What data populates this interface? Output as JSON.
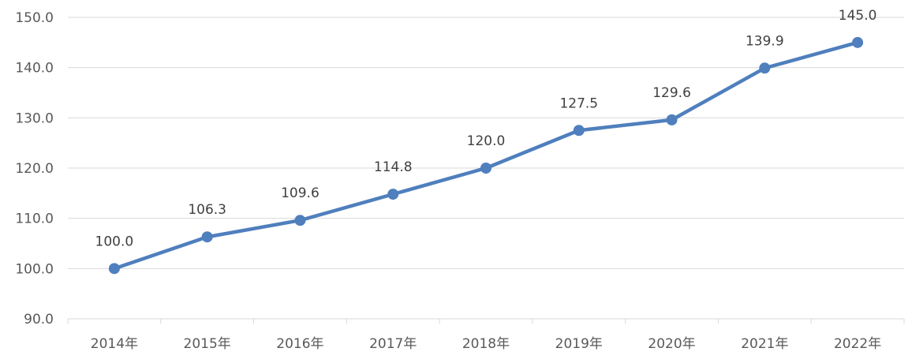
{
  "chart_data": {
    "type": "line",
    "title": "",
    "xlabel": "",
    "ylabel": "",
    "categories": [
      "2014年",
      "2015年",
      "2016年",
      "2017年",
      "2018年",
      "2019年",
      "2020年",
      "2021年",
      "2022年"
    ],
    "series": [
      {
        "values": [
          100.0,
          106.3,
          109.6,
          114.8,
          120.0,
          127.5,
          129.6,
          139.9,
          145.0
        ],
        "labels": [
          "100.0",
          "106.3",
          "109.6",
          "114.8",
          "120.0",
          "127.5",
          "129.6",
          "139.9",
          "145.0"
        ],
        "color": "#4f7fbd"
      }
    ],
    "ylim": [
      90,
      150
    ],
    "yticks": [
      90,
      100,
      110,
      120,
      130,
      140,
      150
    ],
    "ytick_labels": [
      "90.0",
      "100.0",
      "110.0",
      "120.0",
      "130.0",
      "140.0",
      "150.0"
    ],
    "grid": true,
    "grid_color": "#d9d9d9",
    "legend": "none",
    "markers": "circle"
  }
}
